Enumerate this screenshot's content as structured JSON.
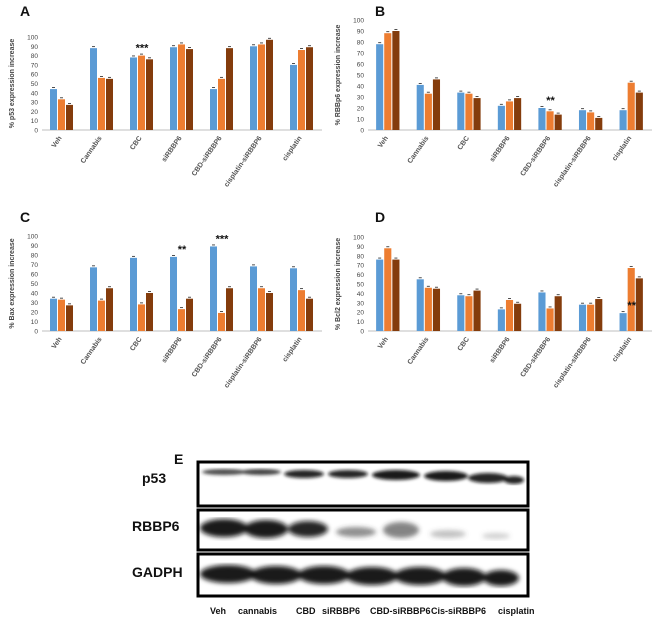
{
  "colors": {
    "blue": "#5b9bd5",
    "orange": "#ed7d31",
    "brown": "#843c0c"
  },
  "chart_data": [
    {
      "panel": "A",
      "type": "bar",
      "ylabel": "% p53 expression increase",
      "ylim": [
        0,
        100
      ],
      "yticks": [
        0,
        10,
        20,
        30,
        40,
        50,
        60,
        70,
        80,
        90,
        100
      ],
      "categories": [
        "Veh",
        "Cannabis",
        "CBC",
        "siRBBP6",
        "CBD-siRBBP6",
        "cisplatin-siRBBP6",
        "cisplatin"
      ],
      "series": [
        {
          "values": [
            44,
            88,
            78,
            89,
            44,
            90,
            70
          ]
        },
        {
          "values": [
            33,
            56,
            80,
            92,
            55,
            92,
            86
          ]
        },
        {
          "values": [
            27,
            55,
            76,
            87,
            88,
            97,
            89
          ]
        }
      ],
      "annotations": [
        {
          "category": "CBC",
          "text": "***"
        }
      ]
    },
    {
      "panel": "B",
      "type": "bar",
      "ylabel": "% RBBp6 expression increase",
      "ylim": [
        0,
        100
      ],
      "yticks": [
        0,
        10,
        20,
        30,
        40,
        50,
        60,
        70,
        80,
        90,
        100
      ],
      "categories": [
        "Veh",
        "Cannabis",
        "CBC",
        "siRBBP6",
        "CBD-siRBBP6",
        "cisplatin-siRBBP6",
        "cisplatin"
      ],
      "series": [
        {
          "values": [
            78,
            41,
            34,
            22,
            20,
            18,
            18
          ]
        },
        {
          "values": [
            88,
            33,
            33,
            26,
            17,
            16,
            43
          ]
        },
        {
          "values": [
            90,
            46,
            29,
            29,
            14,
            11,
            34
          ]
        }
      ],
      "annotations": [
        {
          "category": "CBD-siRBBP6",
          "text": "**"
        }
      ]
    },
    {
      "panel": "C",
      "type": "bar",
      "ylabel": "% Bax expression increase",
      "ylim": [
        0,
        100
      ],
      "yticks": [
        0,
        10,
        20,
        30,
        40,
        50,
        60,
        70,
        80,
        90,
        100
      ],
      "categories": [
        "Veh",
        "Cannabis",
        "CBC",
        "siRBBP6",
        "CBD-siRBBP6",
        "cisplatin-siRBBP6",
        "cisplatin"
      ],
      "series": [
        {
          "values": [
            34,
            67,
            77,
            78,
            89,
            68,
            66
          ]
        },
        {
          "values": [
            33,
            32,
            28,
            23,
            19,
            45,
            43
          ]
        },
        {
          "values": [
            27,
            45,
            40,
            34,
            45,
            40,
            34
          ]
        }
      ],
      "annotations": [
        {
          "category": "siRBBP6",
          "text": "**"
        },
        {
          "category": "CBD-siRBBP6",
          "text": "***"
        }
      ]
    },
    {
      "panel": "D",
      "type": "bar",
      "ylabel": "% Bcl2  expression increase",
      "ylim": [
        0,
        100
      ],
      "yticks": [
        0,
        10,
        20,
        30,
        40,
        50,
        60,
        70,
        80,
        90,
        100
      ],
      "categories": [
        "Veh",
        "Cannabis",
        "CBC",
        "siRBBP6",
        "CBD-siRBBP6",
        "cisplatin-siRBBP6",
        "cisplatin"
      ],
      "series": [
        {
          "values": [
            76,
            55,
            38,
            23,
            41,
            28,
            19
          ]
        },
        {
          "values": [
            88,
            46,
            37,
            33,
            24,
            28,
            67
          ]
        },
        {
          "values": [
            76,
            45,
            43,
            29,
            37,
            34,
            56
          ]
        }
      ],
      "annotations": [
        {
          "category": "cisplatin",
          "text": "**"
        }
      ]
    }
  ],
  "western_blot": {
    "panel": "E",
    "rows": [
      "p53",
      "RBBP6",
      "GADPH"
    ],
    "lanes": [
      "Veh",
      "cannabis",
      "CBD",
      "siRBBP6",
      "CBD-siRBBP6",
      "Cis-siRBBP6",
      "cisplatin"
    ]
  }
}
